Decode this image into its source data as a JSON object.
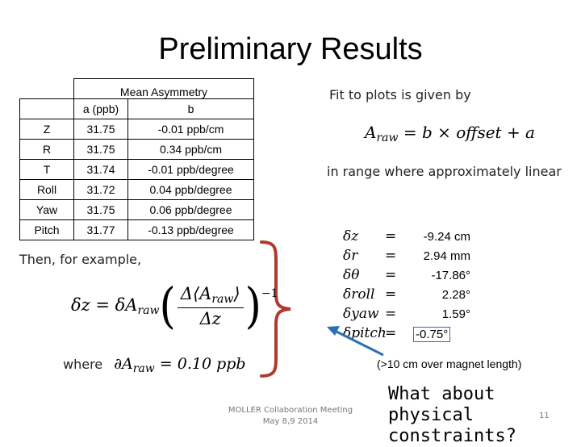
{
  "slide": {
    "title": "Preliminary Results",
    "page_number": "11",
    "footer_line1": "MOLLER Collaboration Meeting",
    "footer_line2": "May 8,9 2014"
  },
  "table": {
    "header_top": "Mean Asymmetry",
    "col_a": "a (ppb)",
    "col_b": "b",
    "rows": [
      {
        "label": "Z",
        "a": "31.75",
        "b": "-0.01 ppb/cm"
      },
      {
        "label": "R",
        "a": "31.75",
        "b": "0.34 ppb/cm"
      },
      {
        "label": "T",
        "a": "31.74",
        "b": "-0.01 ppb/degree"
      },
      {
        "label": "Roll",
        "a": "31.72",
        "b": "0.04 ppb/degree"
      },
      {
        "label": "Yaw",
        "a": "31.75",
        "b": "0.06 ppb/degree"
      },
      {
        "label": "Pitch",
        "a": "31.77",
        "b": "-0.13 ppb/degree"
      }
    ]
  },
  "fit": {
    "intro": "Fit to plots is given by",
    "range": "in range where approximately linear"
  },
  "deltas": [
    {
      "symbol": "δz",
      "value": "-9.24 cm"
    },
    {
      "symbol": "δr",
      "value": "2.94 mm"
    },
    {
      "symbol": "δθ",
      "value": "-17.86°"
    },
    {
      "symbol": "δroll",
      "value": "2.28°"
    },
    {
      "symbol": "δyaw",
      "value": "1.59°"
    },
    {
      "symbol": "δpitch",
      "value": "-0.75°"
    }
  ],
  "example": {
    "then": "Then, for example,",
    "where_word": "where",
    "where_value": "0.10 ppb"
  },
  "note": "(>10 cm over magnet length)",
  "question": {
    "line1": "What about physical",
    "line2": "constraints?"
  },
  "colors": {
    "brace": "#b03a2e",
    "arrow": "#2c6fb5",
    "box": "#2c6fb5"
  }
}
